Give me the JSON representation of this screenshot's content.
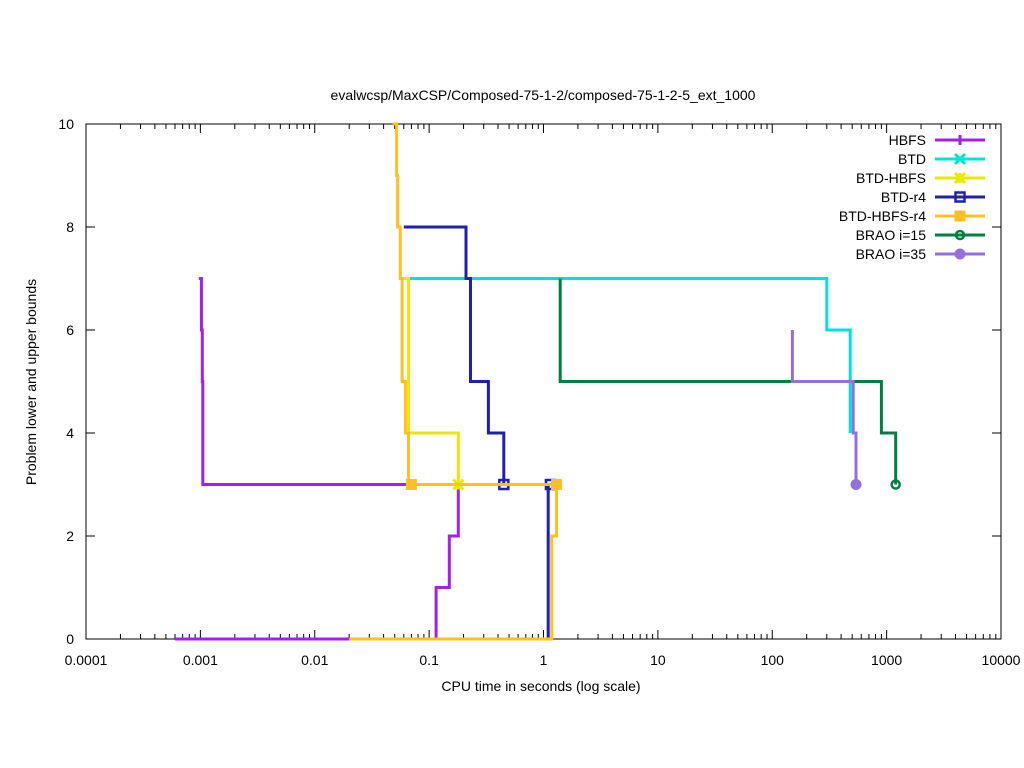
{
  "chart_data": {
    "type": "line",
    "title": "evalwcsp/MaxCSP/Composed-75-1-2/composed-75-1-2-5_ext_1000",
    "xlabel": "CPU time in seconds (log scale)",
    "ylabel": "Problem lower and upper bounds",
    "xscale": "log",
    "xlim": [
      0.0001,
      10000
    ],
    "ylim": [
      0,
      10
    ],
    "x_ticks": [
      0.0001,
      0.001,
      0.01,
      0.1,
      1,
      10,
      100,
      1000,
      10000
    ],
    "x_tick_labels": [
      "0.0001",
      "0.001",
      "0.01",
      "0.1",
      "1",
      "10",
      "100",
      "1000",
      "10000"
    ],
    "y_ticks": [
      0,
      2,
      4,
      6,
      8,
      10
    ],
    "y_tick_labels": [
      "0",
      "2",
      "4",
      "6",
      "8",
      "10"
    ],
    "grid": false,
    "legend_position": "top-right",
    "series": [
      {
        "name": "HBFS",
        "color": "#a020f0",
        "marker": "plus",
        "marker_at": [],
        "paths": [
          [
            [
              0.00097,
              7
            ],
            [
              0.00102,
              7
            ],
            [
              0.00102,
              6
            ],
            [
              0.00104,
              6
            ],
            [
              0.00104,
              5
            ],
            [
              0.00105,
              5
            ],
            [
              0.00105,
              3
            ],
            [
              0.18,
              3
            ]
          ],
          [
            [
              0.0006,
              0
            ],
            [
              0.115,
              0
            ],
            [
              0.115,
              1
            ],
            [
              0.15,
              1
            ],
            [
              0.15,
              2
            ],
            [
              0.18,
              2
            ],
            [
              0.18,
              3
            ]
          ]
        ]
      },
      {
        "name": "BTD",
        "color": "#00e0e0",
        "marker": "x",
        "marker_at": [],
        "paths": [
          [
            [
              0.06,
              7
            ],
            [
              300,
              7
            ],
            [
              300,
              6
            ],
            [
              480,
              6
            ],
            [
              480,
              4
            ]
          ]
        ]
      },
      {
        "name": "BTD-HBFS",
        "color": "#e8e800",
        "marker": "star",
        "marker_at": [
          [
            0.18,
            3
          ]
        ],
        "paths": [
          [
            [
              0.06,
              7
            ],
            [
              0.066,
              7
            ],
            [
              0.066,
              4
            ],
            [
              0.18,
              4
            ],
            [
              0.18,
              3
            ]
          ]
        ]
      },
      {
        "name": "BTD-r4",
        "color": "#2020b0",
        "marker": "open-square",
        "marker_at": [
          [
            0.45,
            3
          ],
          [
            1.15,
            3
          ]
        ],
        "paths": [
          [
            [
              0.06,
              8
            ],
            [
              0.21,
              8
            ],
            [
              0.21,
              7
            ],
            [
              0.23,
              7
            ],
            [
              0.23,
              5
            ],
            [
              0.33,
              5
            ],
            [
              0.33,
              4
            ],
            [
              0.45,
              4
            ],
            [
              0.45,
              3
            ],
            [
              1.15,
              3
            ]
          ],
          [
            [
              0.02,
              0
            ],
            [
              1.1,
              0
            ],
            [
              1.1,
              3
            ],
            [
              1.15,
              3
            ]
          ]
        ]
      },
      {
        "name": "BTD-HBFS-r4",
        "color": "#ffc020",
        "marker": "filled-square",
        "marker_at": [
          [
            0.07,
            3
          ],
          [
            1.3,
            3
          ]
        ],
        "paths": [
          [
            [
              0.048,
              10
            ],
            [
              0.052,
              10
            ],
            [
              0.052,
              9
            ],
            [
              0.053,
              9
            ],
            [
              0.053,
              8
            ],
            [
              0.056,
              8
            ],
            [
              0.056,
              7
            ],
            [
              0.058,
              7
            ],
            [
              0.058,
              5
            ],
            [
              0.062,
              5
            ],
            [
              0.062,
              4
            ],
            [
              0.066,
              4
            ],
            [
              0.066,
              3
            ],
            [
              1.3,
              3
            ]
          ],
          [
            [
              0.02,
              0
            ],
            [
              1.18,
              0
            ],
            [
              1.18,
              2
            ],
            [
              1.3,
              2
            ],
            [
              1.3,
              3
            ]
          ]
        ]
      },
      {
        "name": "BRAO i=15",
        "color": "#008040",
        "marker": "open-circle",
        "marker_at": [
          [
            1200,
            3
          ]
        ],
        "paths": [
          [
            [
              1.4,
              7
            ],
            [
              1.4,
              5
            ],
            [
              900,
              5
            ],
            [
              900,
              4
            ],
            [
              1200,
              4
            ],
            [
              1200,
              3
            ]
          ]
        ]
      },
      {
        "name": "BRAO i=35",
        "color": "#9370db",
        "marker": "filled-circle",
        "marker_at": [
          [
            540,
            3
          ]
        ],
        "paths": [
          [
            [
              150,
              6
            ],
            [
              150,
              5
            ],
            [
              510,
              5
            ],
            [
              510,
              4
            ],
            [
              540,
              4
            ],
            [
              540,
              3
            ]
          ]
        ]
      }
    ]
  }
}
